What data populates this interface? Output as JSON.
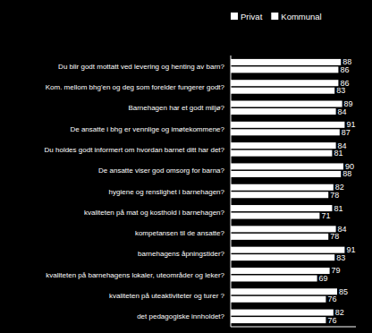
{
  "chart_data": {
    "type": "bar",
    "orientation": "horizontal",
    "categories": [
      "Du blir godt mottatt ved levering og henting av barn?",
      "Kom. mellom bhg'en og deg som forelder fungerer godt?",
      "Barnehagen har et godt miljø?",
      "De ansatte i bhg er vennlige og imøtekommene?",
      "Du holdes godt informert om hvordan barnet ditt har det?",
      "De ansatte viser god omsorg for barna?",
      "hygiene og renslighet i barnehagen?",
      "kvaliteten på mat og kosthold i barnehagen?",
      "kompetansen til de ansatte?",
      "barnehagens åpningstider?",
      "kvaliteten på barnehagens lokaler, uteområder og leker?",
      "kvaliteten på uteaktiviteter og turer ?",
      "det pedagogiske innholdet?"
    ],
    "series": [
      {
        "name": "Privat",
        "color": "#ffffff",
        "values": [
          88,
          86,
          89,
          91,
          84,
          90,
          82,
          81,
          84,
          91,
          79,
          85,
          82
        ]
      },
      {
        "name": "Kommunal",
        "color": "#ffffff",
        "values": [
          86,
          83,
          84,
          87,
          81,
          88,
          78,
          71,
          78,
          83,
          69,
          76,
          76
        ]
      }
    ],
    "xlim": [
      0,
      100
    ],
    "data_labels": true,
    "legend": "top",
    "tick_labels": "y",
    "grid": false
  }
}
